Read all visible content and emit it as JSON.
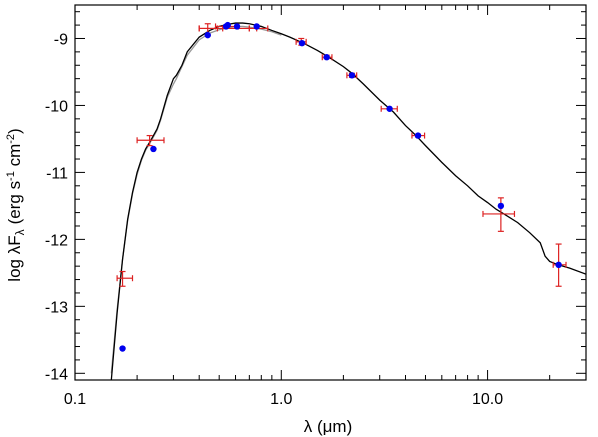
{
  "chart_data": {
    "type": "scatter",
    "xscale": "log",
    "xlim": [
      0.1,
      30
    ],
    "ylim": [
      -14.1,
      -8.5
    ],
    "xticks": [
      0.1,
      1.0,
      10.0
    ],
    "xtick_labels": [
      "0.1",
      "1.0",
      "10.0"
    ],
    "yticks": [
      -14,
      -13,
      -12,
      -11,
      -10,
      -9
    ],
    "ytick_labels": [
      "-14",
      "-13",
      "-12",
      "-11",
      "-10",
      "-9"
    ],
    "xlabel": "λ (μm)",
    "ylabel": "log λF",
    "ylabel_sub": "λ",
    "ylabel_unit": "(erg s",
    "ylabel_unit_exp1": "-1",
    "ylabel_unit_mid": " cm",
    "ylabel_unit_exp2": "-2",
    "ylabel_unit_end": ")",
    "grid": false,
    "colors": {
      "model": "#000000",
      "model_alt": "#999999",
      "model_points": "#0000ee",
      "observed": "#dd2222"
    },
    "series": [
      {
        "x": [
          0.15,
          0.16,
          0.17,
          0.18,
          0.19,
          0.2,
          0.21,
          0.22,
          0.23,
          0.24,
          0.25,
          0.26,
          0.28,
          0.3,
          0.31,
          0.33,
          0.35,
          0.4,
          0.45,
          0.5,
          0.55,
          0.6,
          0.65,
          0.7,
          0.8,
          0.9,
          1.0,
          1.1,
          1.3,
          1.5,
          1.7,
          2.0,
          2.2,
          2.5,
          3.0,
          3.5,
          4.0,
          4.5,
          5.0,
          6.0,
          7.0,
          8.0,
          9.0,
          10.0,
          11.0,
          12.0,
          14.0,
          16.0,
          18.0,
          19.0,
          20.0,
          22.0,
          25.0,
          30.0
        ],
        "y": [
          -14.1,
          -13.1,
          -12.3,
          -11.7,
          -11.3,
          -11.0,
          -10.8,
          -10.65,
          -10.55,
          -10.45,
          -10.35,
          -10.2,
          -9.85,
          -9.6,
          -9.55,
          -9.4,
          -9.2,
          -8.98,
          -8.88,
          -8.82,
          -8.79,
          -8.77,
          -8.77,
          -8.78,
          -8.82,
          -8.88,
          -8.93,
          -8.98,
          -9.08,
          -9.18,
          -9.28,
          -9.42,
          -9.52,
          -9.68,
          -9.92,
          -10.1,
          -10.3,
          -10.45,
          -10.6,
          -10.85,
          -11.05,
          -11.2,
          -11.35,
          -11.45,
          -11.55,
          -11.62,
          -11.75,
          -11.9,
          -12.05,
          -12.25,
          -12.33,
          -12.38,
          -12.43,
          -12.52
        ]
      },
      {
        "x": [
          0.15,
          0.16,
          0.17,
          0.18,
          0.19,
          0.2,
          0.21,
          0.22,
          0.23,
          0.24,
          0.25,
          0.26,
          0.28,
          0.3,
          0.31,
          0.33,
          0.35,
          0.4,
          0.45,
          0.5,
          0.55,
          0.6,
          0.65,
          0.7,
          0.8,
          0.9,
          1.0
        ],
        "y": [
          -14.0,
          -13.05,
          -12.3,
          -11.72,
          -11.32,
          -11.03,
          -10.82,
          -10.67,
          -10.57,
          -10.47,
          -10.37,
          -10.22,
          -9.88,
          -9.68,
          -9.6,
          -9.42,
          -9.25,
          -9.02,
          -8.92,
          -8.87,
          -8.84,
          -8.82,
          -8.82,
          -8.83,
          -8.86,
          -8.9,
          -8.95
        ]
      },
      {
        "x": [
          0.17,
          0.24,
          0.44,
          0.54,
          0.55,
          0.61,
          0.76,
          1.26,
          1.66,
          2.2,
          3.35,
          4.6,
          11.6,
          22.1
        ],
        "y": [
          -13.63,
          -10.65,
          -8.95,
          -8.82,
          -8.8,
          -8.82,
          -8.82,
          -9.07,
          -9.28,
          -9.55,
          -10.05,
          -10.45,
          -11.5,
          -12.38
        ]
      },
      {
        "x": [
          0.17,
          0.23,
          0.44,
          0.54,
          0.55,
          0.61,
          0.76,
          1.25,
          1.66,
          2.2,
          3.35,
          4.6,
          11.6,
          22.1
        ],
        "y": [
          -12.58,
          -10.52,
          -8.85,
          -8.85,
          -8.82,
          -8.85,
          -8.85,
          -9.05,
          -9.28,
          -9.55,
          -10.05,
          -10.45,
          -11.62,
          -12.38
        ],
        "xlo": [
          0.16,
          0.2,
          0.4,
          0.4,
          0.48,
          0.52,
          0.7,
          1.18,
          1.58,
          2.08,
          3.05,
          4.3,
          9.5,
          20.8
        ],
        "xhi": [
          0.19,
          0.27,
          0.49,
          0.76,
          0.62,
          0.7,
          0.86,
          1.32,
          1.76,
          2.32,
          3.65,
          4.95,
          13.5,
          24.0
        ],
        "ylo": [
          -12.7,
          -10.6,
          -8.95,
          -8.85,
          -8.82,
          -8.85,
          -8.85,
          -9.1,
          -9.3,
          -9.58,
          -10.05,
          -10.47,
          -11.88,
          -12.7
        ],
        "yhi": [
          -12.48,
          -10.45,
          -8.78,
          -8.85,
          -8.82,
          -8.85,
          -8.85,
          -9.0,
          -9.25,
          -9.52,
          -10.05,
          -10.43,
          -11.38,
          -12.07
        ]
      }
    ]
  }
}
